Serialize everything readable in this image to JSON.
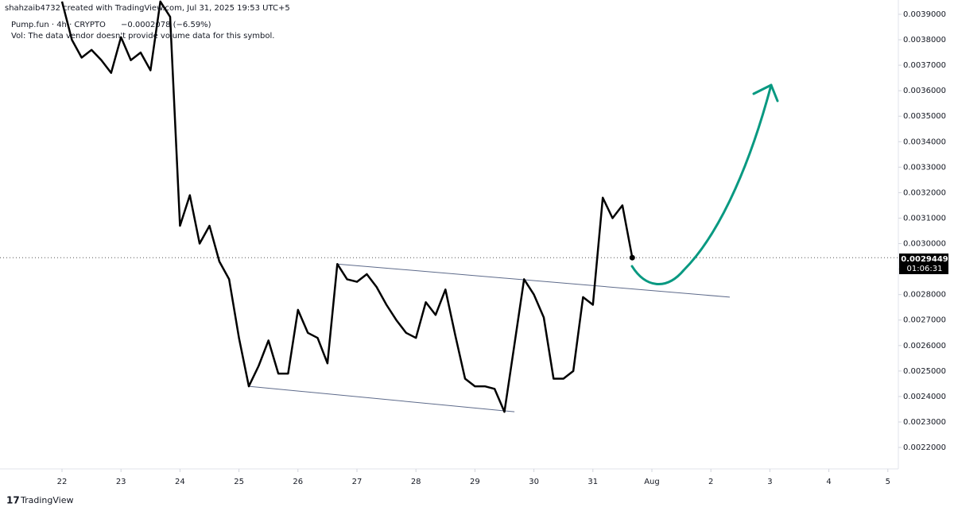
{
  "chart_data": {
    "type": "line",
    "header": "shahzaib4732 created with TradingView.com, Jul 31, 2025 19:53 UTC+5",
    "symbol": "Pump.fun · 4h · CRYPTO",
    "change": "−0.0002078 (−6.59%)",
    "volume_note": "Vol: The data vendor doesn't provide volume data for this symbol.",
    "countdown": "01:06:31",
    "brand": "TradingView",
    "x": [
      22,
      22.1667,
      22.3333,
      22.5,
      22.6667,
      22.8333,
      23,
      23.1667,
      23.3333,
      23.5,
      23.6667,
      23.8333,
      24,
      24.1667,
      24.3333,
      24.5,
      24.6667,
      24.8333,
      25,
      25.1667,
      25.3333,
      25.5,
      25.6667,
      25.8333,
      26,
      26.1667,
      26.3333,
      26.5,
      26.6667,
      26.8333,
      27,
      27.1667,
      27.3333,
      27.5,
      27.6667,
      27.8333,
      28,
      28.1667,
      28.3333,
      28.5,
      28.6667,
      28.8333,
      29,
      29.1667,
      29.3333,
      29.5,
      29.6667,
      29.8333,
      30,
      30.1667,
      30.3333,
      30.5,
      30.6667,
      30.8333,
      31,
      31.1667,
      31.3333,
      31.5,
      31.6667
    ],
    "series": [
      {
        "color": "#000000",
        "values": [
          0.00395,
          0.0038,
          0.00373,
          0.00376,
          0.00372,
          0.00367,
          0.00381,
          0.00372,
          0.00375,
          0.00368,
          0.00395,
          0.00389,
          0.00307,
          0.00319,
          0.003,
          0.00307,
          0.00293,
          0.00286,
          0.00263,
          0.00244,
          0.00252,
          0.00262,
          0.00249,
          0.00249,
          0.00274,
          0.00265,
          0.00263,
          0.00253,
          0.00292,
          0.00286,
          0.00285,
          0.00288,
          0.00283,
          0.00276,
          0.0027,
          0.00265,
          0.00263,
          0.00277,
          0.00272,
          0.00282,
          0.00264,
          0.00247,
          0.00244,
          0.00244,
          0.00243,
          0.00234,
          0.0026,
          0.00286,
          0.0028,
          0.00271,
          0.00247,
          0.00247,
          0.0025,
          0.00279,
          0.00276,
          0.00318,
          0.0031,
          0.00315,
          0.0029449
        ]
      }
    ],
    "trendlines": [
      {
        "color": "#5d6a8a",
        "x": [
          26.663,
          33.32
        ],
        "y": [
          0.00292,
          0.00279
        ]
      },
      {
        "color": "#5d6a8a",
        "x": [
          25.167,
          29.67
        ],
        "y": [
          0.00244,
          0.00234
        ]
      }
    ],
    "xlim": [
      20.949,
      36.178
    ],
    "xticks": [
      22,
      23,
      24,
      25,
      26,
      27,
      28,
      29,
      30,
      31,
      {
        "value": 32,
        "label": "Aug"
      },
      {
        "value": 33,
        "label": "2"
      },
      {
        "value": 34,
        "label": "3"
      },
      {
        "value": 35,
        "label": "4"
      },
      {
        "value": 36,
        "label": "5"
      }
    ],
    "ylim": [
      0.002116,
      0.003956
    ],
    "yticks": [
      {
        "value": 0.0022,
        "label": "0.0022000"
      },
      {
        "value": 0.0023,
        "label": "0.0023000"
      },
      {
        "value": 0.0024,
        "label": "0.0024000"
      },
      {
        "value": 0.0025,
        "label": "0.0025000"
      },
      {
        "value": 0.0026,
        "label": "0.0026000"
      },
      {
        "value": 0.0027,
        "label": "0.0027000"
      },
      {
        "value": 0.0028,
        "label": "0.0028000"
      },
      {
        "value": 0.0029,
        "label": "0.0029000"
      },
      {
        "value": 0.003,
        "label": "0.0030000"
      },
      {
        "value": 0.0031,
        "label": "0.0031000"
      },
      {
        "value": 0.0032,
        "label": "0.0032000"
      },
      {
        "value": 0.0033,
        "label": "0.0033000"
      },
      {
        "value": 0.0034,
        "label": "0.0034000"
      },
      {
        "value": 0.0035,
        "label": "0.0035000"
      },
      {
        "value": 0.0036,
        "label": "0.0036000"
      },
      {
        "value": 0.0037,
        "label": "0.0037000"
      },
      {
        "value": 0.0038,
        "label": "0.0038000"
      },
      {
        "value": 0.0039,
        "label": "0.0039000"
      }
    ],
    "grid": false
  }
}
